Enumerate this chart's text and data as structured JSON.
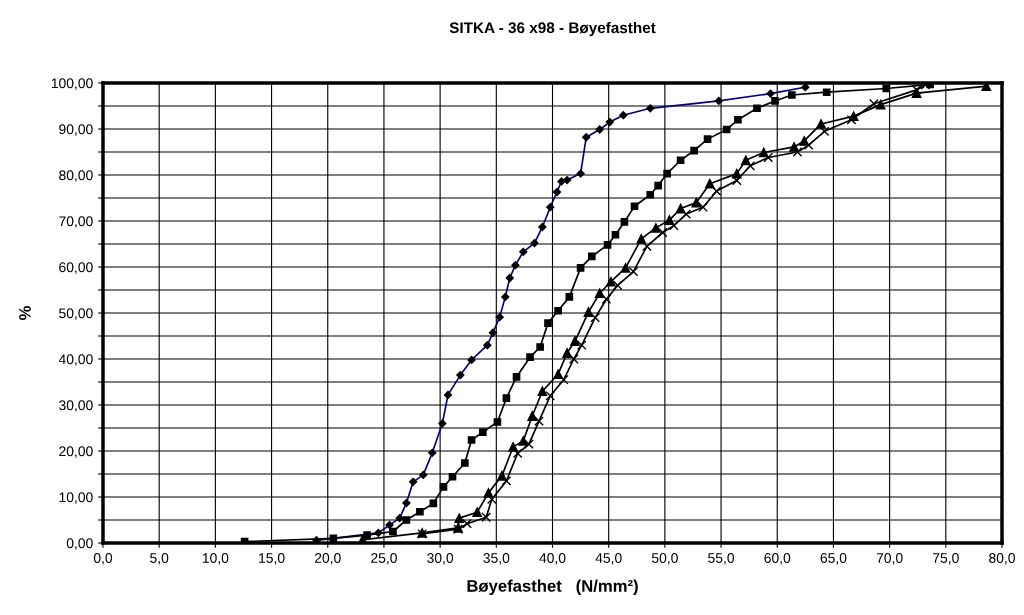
{
  "chart_data": {
    "type": "line",
    "title": "SITKA - 36 x98 - Bøyefasthet",
    "xlabel": "Bøyefasthet   (N/mm²)",
    "ylabel": "%",
    "xlim": [
      0,
      80
    ],
    "ylim": [
      0,
      100
    ],
    "xticks": [
      {
        "value": 0,
        "label": "0,0"
      },
      {
        "value": 5,
        "label": "5,0"
      },
      {
        "value": 10,
        "label": "10,0"
      },
      {
        "value": 15,
        "label": "15,0"
      },
      {
        "value": 20,
        "label": "20,0"
      },
      {
        "value": 25,
        "label": "25,0"
      },
      {
        "value": 30,
        "label": "30,0"
      },
      {
        "value": 35,
        "label": "35,0"
      },
      {
        "value": 40,
        "label": "40,0"
      },
      {
        "value": 45,
        "label": "45,0"
      },
      {
        "value": 50,
        "label": "50,0"
      },
      {
        "value": 55,
        "label": "55,0"
      },
      {
        "value": 60,
        "label": "60,0"
      },
      {
        "value": 65,
        "label": "65,0"
      },
      {
        "value": 70,
        "label": "70,0"
      },
      {
        "value": 75,
        "label": "75,0"
      },
      {
        "value": 80,
        "label": "80,0"
      }
    ],
    "yticks": [
      {
        "value": 0,
        "label": "0,00"
      },
      {
        "value": 5,
        "label": null
      },
      {
        "value": 10,
        "label": "10,00"
      },
      {
        "value": 15,
        "label": null
      },
      {
        "value": 20,
        "label": "20,00"
      },
      {
        "value": 25,
        "label": null
      },
      {
        "value": 30,
        "label": "30,00"
      },
      {
        "value": 35,
        "label": null
      },
      {
        "value": 40,
        "label": "40,00"
      },
      {
        "value": 45,
        "label": null
      },
      {
        "value": 50,
        "label": "50,00"
      },
      {
        "value": 55,
        "label": null
      },
      {
        "value": 60,
        "label": "60,00"
      },
      {
        "value": 65,
        "label": null
      },
      {
        "value": 70,
        "label": "70,00"
      },
      {
        "value": 75,
        "label": null
      },
      {
        "value": 80,
        "label": "80,00"
      },
      {
        "value": 85,
        "label": null
      },
      {
        "value": 90,
        "label": "90,00"
      },
      {
        "value": 95,
        "label": null
      },
      {
        "value": 100,
        "label": "100,00"
      }
    ],
    "grid": true,
    "legend": false,
    "line_style": "solid",
    "series": [
      {
        "color": "#000080",
        "marker": "diamond",
        "x": [
          19.0,
          24.5,
          25.5,
          26.4,
          27.0,
          27.6,
          28.5,
          29.3,
          30.2,
          30.7,
          31.8,
          32.8,
          34.2,
          34.7,
          35.3,
          35.8,
          36.2,
          36.7,
          37.4,
          38.4,
          39.1,
          39.8,
          40.4,
          40.8,
          41.3,
          42.5,
          43.0,
          44.2,
          45.1,
          46.3,
          48.7,
          54.8,
          59.4,
          62.5
        ],
        "values": [
          0.6,
          2.2,
          3.9,
          5.4,
          8.7,
          13.3,
          14.8,
          19.6,
          26.0,
          32.2,
          36.5,
          39.8,
          43.0,
          45.7,
          49.1,
          53.5,
          57.6,
          60.4,
          63.3,
          65.2,
          68.7,
          73.0,
          76.3,
          78.6,
          78.9,
          80.3,
          88.2,
          89.9,
          91.5,
          93.0,
          94.5,
          96.1,
          97.7,
          99.1
        ]
      },
      {
        "color": "#000000",
        "marker": "square",
        "x": [
          12.6,
          20.5,
          23.5,
          25.8,
          27.0,
          28.2,
          29.4,
          30.3,
          31.1,
          32.2,
          32.8,
          33.8,
          35.1,
          35.9,
          36.8,
          38.0,
          38.9,
          39.6,
          40.5,
          41.5,
          42.5,
          43.5,
          44.9,
          45.6,
          46.4,
          47.3,
          48.7,
          49.4,
          50.2,
          51.4,
          52.6,
          53.8,
          55.5,
          56.5,
          58.2,
          59.8,
          61.3,
          64.4,
          69.7,
          73.6
        ],
        "values": [
          0.3,
          1.0,
          1.7,
          2.5,
          5.0,
          6.8,
          8.6,
          12.2,
          14.4,
          17.4,
          22.4,
          24.1,
          26.3,
          31.5,
          36.1,
          40.4,
          42.6,
          47.8,
          50.5,
          53.5,
          59.8,
          62.3,
          64.8,
          67.0,
          69.8,
          73.2,
          75.7,
          77.7,
          80.3,
          83.2,
          85.3,
          87.8,
          89.9,
          92.0,
          94.5,
          96.1,
          97.4,
          98.0,
          98.8,
          99.7
        ]
      },
      {
        "color": "#000000",
        "marker": "triangle",
        "x": [
          23.1,
          28.4,
          31.6,
          31.7,
          33.3,
          34.3,
          35.5,
          36.5,
          37.4,
          38.2,
          39.1,
          40.5,
          41.3,
          42.0,
          43.2,
          44.2,
          45.2,
          46.5,
          47.9,
          49.2,
          50.4,
          51.4,
          52.8,
          54.0,
          56.4,
          57.2,
          58.8,
          61.5,
          62.4,
          63.9,
          66.8,
          69.2,
          72.4,
          78.6
        ],
        "values": [
          0.7,
          2.2,
          3.3,
          5.4,
          6.7,
          10.9,
          14.6,
          20.9,
          22.2,
          27.6,
          33.0,
          36.7,
          41.3,
          43.9,
          50.2,
          54.3,
          56.8,
          59.8,
          66.1,
          68.5,
          70.2,
          72.7,
          74.0,
          78.1,
          80.3,
          83.2,
          84.9,
          86.1,
          87.4,
          91.1,
          92.8,
          95.3,
          97.8,
          99.3
        ]
      },
      {
        "color": "#000000",
        "marker": "cross",
        "x": [
          28.4,
          31.6,
          32.4,
          34.1,
          34.6,
          35.9,
          36.9,
          37.9,
          38.8,
          39.8,
          41.0,
          41.9,
          42.6,
          43.8,
          44.8,
          45.8,
          47.2,
          48.4,
          49.8,
          50.8,
          51.9,
          53.4,
          54.6,
          56.4,
          57.6,
          59.2,
          61.8,
          62.8,
          64.2,
          66.6,
          68.6,
          72.4,
          73.2
        ],
        "values": [
          2.0,
          3.0,
          4.2,
          5.6,
          9.5,
          13.5,
          19.5,
          21.5,
          26.5,
          32.0,
          35.5,
          40.0,
          43.0,
          49.0,
          53.0,
          56.0,
          59.0,
          64.5,
          67.5,
          69.0,
          71.5,
          73.0,
          76.5,
          78.8,
          82.0,
          83.8,
          85.0,
          86.5,
          89.5,
          92.0,
          95.5,
          98.5,
          99.6
        ]
      }
    ]
  }
}
